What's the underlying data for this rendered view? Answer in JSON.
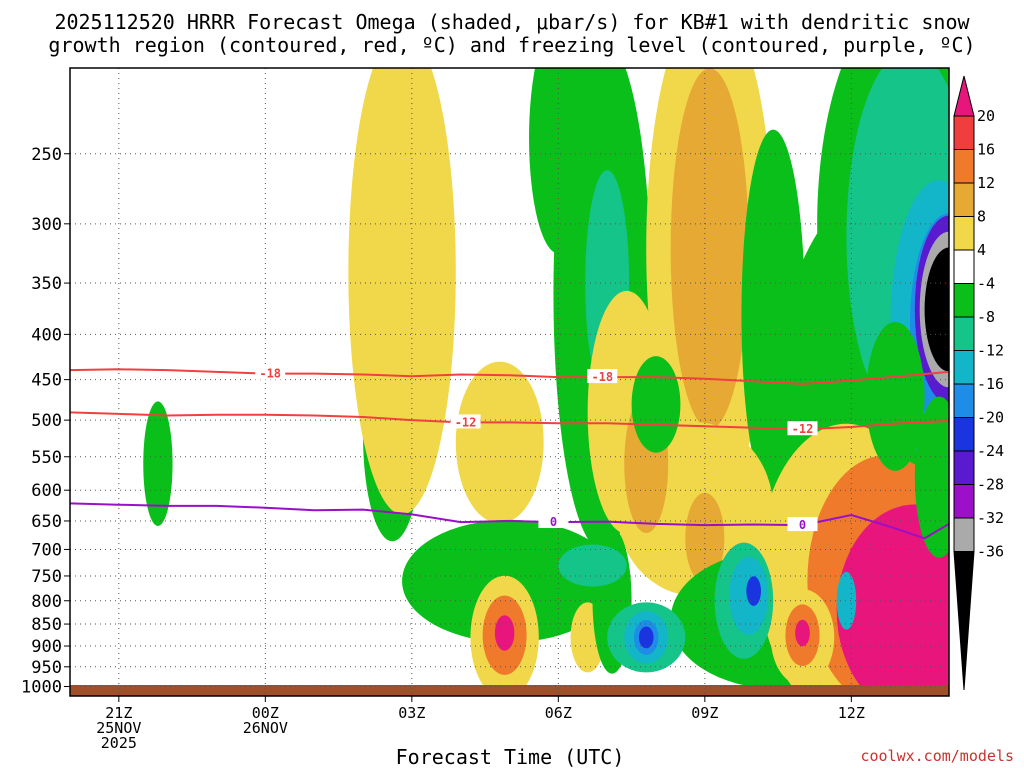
{
  "chart_data": {
    "type": "heatmap",
    "title_lines": [
      "2025112520 HRRR Forecast Omega (shaded, μbar/s) for KB#1 with dendritic snow",
      "growth region (contoured, red, ºC) and freezing level (contoured, purple, ºC)"
    ],
    "xlabel": "Forecast Time (UTC)",
    "watermark": "coolwx.com/models",
    "x_range_hours": [
      -1,
      17
    ],
    "y_range_hPa": [
      1025,
      200
    ],
    "x_ticks": [
      {
        "h": 0,
        "lines": [
          "21Z",
          "25NOV",
          "2025"
        ]
      },
      {
        "h": 3,
        "lines": [
          "00Z",
          "26NOV"
        ]
      },
      {
        "h": 6,
        "lines": [
          "03Z"
        ]
      },
      {
        "h": 9,
        "lines": [
          "06Z"
        ]
      },
      {
        "h": 12,
        "lines": [
          "09Z"
        ]
      },
      {
        "h": 15,
        "lines": [
          "12Z"
        ]
      }
    ],
    "y_ticks": [
      250,
      300,
      350,
      400,
      450,
      500,
      550,
      600,
      650,
      700,
      750,
      800,
      850,
      900,
      950,
      1000
    ],
    "colorbar": {
      "labels": [
        "20",
        "16",
        "12",
        "8",
        "4",
        "-4",
        "-8",
        "-12",
        "-16",
        "-20",
        "-24",
        "-28",
        "-32",
        "-36"
      ],
      "colors": [
        "#e8157c",
        "#f03e3e",
        "#ef7a2b",
        "#e6a934",
        "#f0d84a",
        "#ffffff",
        "#0bbf1a",
        "#14c488",
        "#12b6c8",
        "#1e8de8",
        "#1a34e0",
        "#5a1ad0",
        "#9b10c8",
        "#aaaaaa",
        "#000000"
      ]
    },
    "omega_features": [
      {
        "color": "#0bbf1a",
        "h": 0.8,
        "p": 560,
        "rh": 0.3,
        "rp": 90
      },
      {
        "color": "#0bbf1a",
        "h": 5.6,
        "p": 520,
        "rh": 0.6,
        "rp": 140
      },
      {
        "color": "#f0d84a",
        "h": 5.8,
        "p": 340,
        "rh": 1.1,
        "rp": 190
      },
      {
        "color": "#f0d84a",
        "h": 7.8,
        "p": 530,
        "rh": 0.9,
        "rp": 110
      },
      {
        "color": "#0bbf1a",
        "h": 9.9,
        "p": 360,
        "rh": 1.0,
        "rp": 210
      },
      {
        "color": "#14c488",
        "h": 10.0,
        "p": 350,
        "rh": 0.45,
        "rp": 100
      },
      {
        "color": "#0bbf1a",
        "h": 9.0,
        "p": 240,
        "rh": 0.6,
        "rp": 70
      },
      {
        "color": "#f0d84a",
        "h": 12.1,
        "p": 320,
        "rh": 1.3,
        "rp": 230
      },
      {
        "color": "#e6a934",
        "h": 12.1,
        "p": 320,
        "rh": 0.8,
        "rp": 140
      },
      {
        "color": "#0bbf1a",
        "h": 13.4,
        "p": 380,
        "rh": 0.65,
        "rp": 170
      },
      {
        "color": "#f0d84a",
        "h": 10.4,
        "p": 490,
        "rh": 0.8,
        "rp": 150
      },
      {
        "color": "#f0d84a",
        "h": 11.8,
        "p": 630,
        "rh": 1.6,
        "rp": 140
      },
      {
        "color": "#e6a934",
        "h": 10.8,
        "p": 560,
        "rh": 0.45,
        "rp": 100
      },
      {
        "color": "#e6a934",
        "h": 12.0,
        "p": 680,
        "rh": 0.4,
        "rp": 80
      },
      {
        "color": "#0bbf1a",
        "h": 11.0,
        "p": 480,
        "rh": 0.5,
        "rp": 60
      },
      {
        "color": "#0bbf1a",
        "h": 8.0,
        "p": 760,
        "rh": 2.2,
        "rp": 120
      },
      {
        "color": "#0bbf1a",
        "h": 13.5,
        "p": 840,
        "rh": 2.2,
        "rp": 150
      },
      {
        "color": "#0bbf1a",
        "h": 16.0,
        "p": 460,
        "rh": 2.5,
        "rp": 230
      },
      {
        "color": "#0bbf1a",
        "h": 16.2,
        "p": 300,
        "rh": 1.9,
        "rp": 200
      },
      {
        "color": "#14c488",
        "h": 16.2,
        "p": 310,
        "rh": 1.3,
        "rp": 140
      },
      {
        "color": "#12b6c8",
        "h": 16.8,
        "p": 390,
        "rh": 1.0,
        "rp": 140
      },
      {
        "color": "#1e8de8",
        "h": 17.0,
        "p": 390,
        "rh": 0.8,
        "rp": 110
      },
      {
        "color": "#5a1ad0",
        "h": 17.0,
        "p": 375,
        "rh": 0.7,
        "rp": 90
      },
      {
        "color": "#aaaaaa",
        "h": 17.0,
        "p": 375,
        "rh": 0.6,
        "rp": 75
      },
      {
        "color": "#000000",
        "h": 17.0,
        "p": 375,
        "rh": 0.5,
        "rp": 60
      },
      {
        "color": "#f0d84a",
        "h": 14.9,
        "p": 740,
        "rh": 1.8,
        "rp": 270
      },
      {
        "color": "#ef7a2b",
        "h": 15.7,
        "p": 760,
        "rh": 1.6,
        "rp": 240
      },
      {
        "color": "#e8157c",
        "h": 16.3,
        "p": 820,
        "rh": 1.6,
        "rp": 220
      },
      {
        "color": "#0bbf1a",
        "h": 16.8,
        "p": 580,
        "rh": 0.5,
        "rp": 120
      },
      {
        "color": "#f0d84a",
        "h": 7.9,
        "p": 880,
        "rh": 0.7,
        "rp": 140
      },
      {
        "color": "#ef7a2b",
        "h": 7.9,
        "p": 875,
        "rh": 0.45,
        "rp": 90
      },
      {
        "color": "#e8157c",
        "h": 7.9,
        "p": 870,
        "rh": 0.2,
        "rp": 40
      },
      {
        "color": "#f0d84a",
        "h": 9.6,
        "p": 880,
        "rh": 0.35,
        "rp": 80
      },
      {
        "color": "#0bbf1a",
        "h": 10.1,
        "p": 800,
        "rh": 0.4,
        "rp": 150
      },
      {
        "color": "#14c488",
        "h": 9.7,
        "p": 730,
        "rh": 0.7,
        "rp": 40
      },
      {
        "color": "#14c488",
        "h": 10.8,
        "p": 880,
        "rh": 0.8,
        "rp": 80
      },
      {
        "color": "#12b6c8",
        "h": 10.8,
        "p": 880,
        "rh": 0.45,
        "rp": 60
      },
      {
        "color": "#1e8de8",
        "h": 10.8,
        "p": 880,
        "rh": 0.25,
        "rp": 40
      },
      {
        "color": "#1a34e0",
        "h": 10.8,
        "p": 880,
        "rh": 0.15,
        "rp": 25
      },
      {
        "color": "#14c488",
        "h": 12.8,
        "p": 800,
        "rh": 0.6,
        "rp": 120
      },
      {
        "color": "#12b6c8",
        "h": 12.9,
        "p": 790,
        "rh": 0.4,
        "rp": 80
      },
      {
        "color": "#1a34e0",
        "h": 13.0,
        "p": 780,
        "rh": 0.15,
        "rp": 30
      },
      {
        "color": "#f0d84a",
        "h": 14.0,
        "p": 880,
        "rh": 0.65,
        "rp": 110
      },
      {
        "color": "#ef7a2b",
        "h": 14.0,
        "p": 875,
        "rh": 0.35,
        "rp": 70
      },
      {
        "color": "#e8157c",
        "h": 14.0,
        "p": 870,
        "rh": 0.15,
        "rp": 30
      },
      {
        "color": "#12b6c8",
        "h": 14.9,
        "p": 800,
        "rh": 0.2,
        "rp": 60
      },
      {
        "color": "#0bbf1a",
        "h": 15.9,
        "p": 470,
        "rh": 0.6,
        "rp": 90
      }
    ],
    "contours": [
      {
        "label": "-18",
        "color": "#f04040",
        "label_at_h": [
          3.1,
          9.9
        ],
        "points": [
          [
            -1,
            439
          ],
          [
            0,
            438
          ],
          [
            1,
            439
          ],
          [
            2,
            441
          ],
          [
            3,
            443
          ],
          [
            4,
            443
          ],
          [
            5,
            444
          ],
          [
            6,
            446
          ],
          [
            7,
            444
          ],
          [
            8,
            445
          ],
          [
            9,
            447
          ],
          [
            10,
            447
          ],
          [
            11,
            447
          ],
          [
            12,
            449
          ],
          [
            13,
            452
          ],
          [
            14,
            455
          ],
          [
            15,
            451
          ],
          [
            16,
            446
          ],
          [
            17,
            441
          ]
        ]
      },
      {
        "label": "-12",
        "color": "#f04040",
        "label_at_h": [
          7.1,
          14.0
        ],
        "points": [
          [
            -1,
            490
          ],
          [
            0,
            492
          ],
          [
            1,
            494
          ],
          [
            2,
            493
          ],
          [
            3,
            493
          ],
          [
            4,
            494
          ],
          [
            5,
            496
          ],
          [
            6,
            500
          ],
          [
            7,
            503
          ],
          [
            8,
            503
          ],
          [
            9,
            504
          ],
          [
            10,
            504
          ],
          [
            11,
            506
          ],
          [
            12,
            508
          ],
          [
            13,
            510
          ],
          [
            14,
            512
          ],
          [
            15,
            509
          ],
          [
            16,
            504
          ],
          [
            17,
            501
          ]
        ]
      },
      {
        "label": "0",
        "color": "#9a10c8",
        "label_at_h": [
          8.9,
          14.0
        ],
        "points": [
          [
            -1,
            621
          ],
          [
            0,
            623
          ],
          [
            1,
            625
          ],
          [
            2,
            625
          ],
          [
            3,
            628
          ],
          [
            4,
            632
          ],
          [
            5,
            631
          ],
          [
            6,
            639
          ],
          [
            7,
            652
          ],
          [
            8,
            650
          ],
          [
            9,
            652
          ],
          [
            10,
            651
          ],
          [
            11,
            655
          ],
          [
            12,
            657
          ],
          [
            13,
            656
          ],
          [
            14,
            657
          ],
          [
            15,
            640
          ],
          [
            15.8,
            660
          ],
          [
            16.5,
            680
          ],
          [
            17,
            655
          ]
        ]
      }
    ]
  }
}
